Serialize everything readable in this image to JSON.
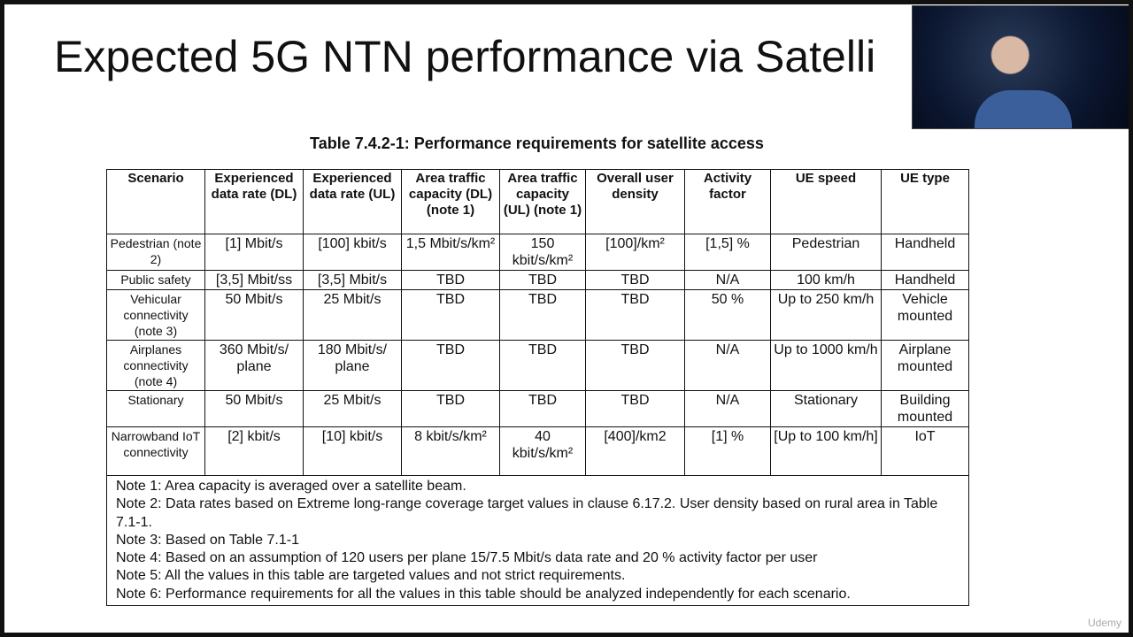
{
  "slide": {
    "title": "Expected 5G NTN performance via Satelli",
    "table": {
      "caption": "Table 7.4.2-1: Performance requirements for satellite access",
      "header": [
        "Scenario",
        "Experienced data rate (DL)",
        "Experienced data rate (UL)",
        "Area traffic capacity (DL) (note 1)",
        "Area traffic capacity (UL) (note 1)",
        "Overall user density",
        "Activity factor",
        "UE speed",
        "UE type"
      ],
      "rows": [
        [
          "Pedestrian (note 2)",
          "[1] Mbit/s",
          "[100] kbit/s",
          "1,5 Mbit/s/km²",
          "150 kbit/s/km²",
          "[100]/km²",
          "[1,5] %",
          "Pedestrian",
          "Handheld"
        ],
        [
          "Public safety",
          "[3,5] Mbit/ss",
          "[3,5] Mbit/s",
          "TBD",
          "TBD",
          "TBD",
          "N/A",
          "100 km/h",
          "Handheld"
        ],
        [
          "Vehicular connectivity (note 3)",
          "50 Mbit/s",
          "25 Mbit/s",
          "TBD",
          "TBD",
          "TBD",
          "50 %",
          "Up to 250 km/h",
          "Vehicle mounted"
        ],
        [
          "Airplanes connectivity (note 4)",
          "360 Mbit/s/ plane",
          "180 Mbit/s/ plane",
          "TBD",
          "TBD",
          "TBD",
          "N/A",
          "Up to 1000 km/h",
          "Airplane mounted"
        ],
        [
          "Stationary",
          "50 Mbit/s",
          "25 Mbit/s",
          "TBD",
          "TBD",
          "TBD",
          "N/A",
          "Stationary",
          "Building mounted"
        ],
        [
          "Narrowband IoT connectivity",
          "[2] kbit/s",
          "[10] kbit/s",
          "8 kbit/s/km²",
          "40 kbit/s/km²",
          "[400]/km2",
          "[1] %",
          "[Up to 100 km/h]",
          "IoT"
        ]
      ],
      "notes": [
        "Note 1: Area capacity is averaged over a satellite beam.",
        "Note 2: Data rates based on Extreme long-range coverage target values in clause 6.17.2. User density based on rural area in Table 7.1-1.",
        "Note 3: Based on Table 7.1-1",
        "Note 4: Based on an assumption of 120 users per plane 15/7.5 Mbit/s data rate and 20 % activity factor per user",
        "Note 5: All the values in this table are targeted values and not strict requirements.",
        "Note 6: Performance requirements for all the values in this table should be analyzed independently for each scenario."
      ]
    },
    "logo": "Udemy"
  }
}
